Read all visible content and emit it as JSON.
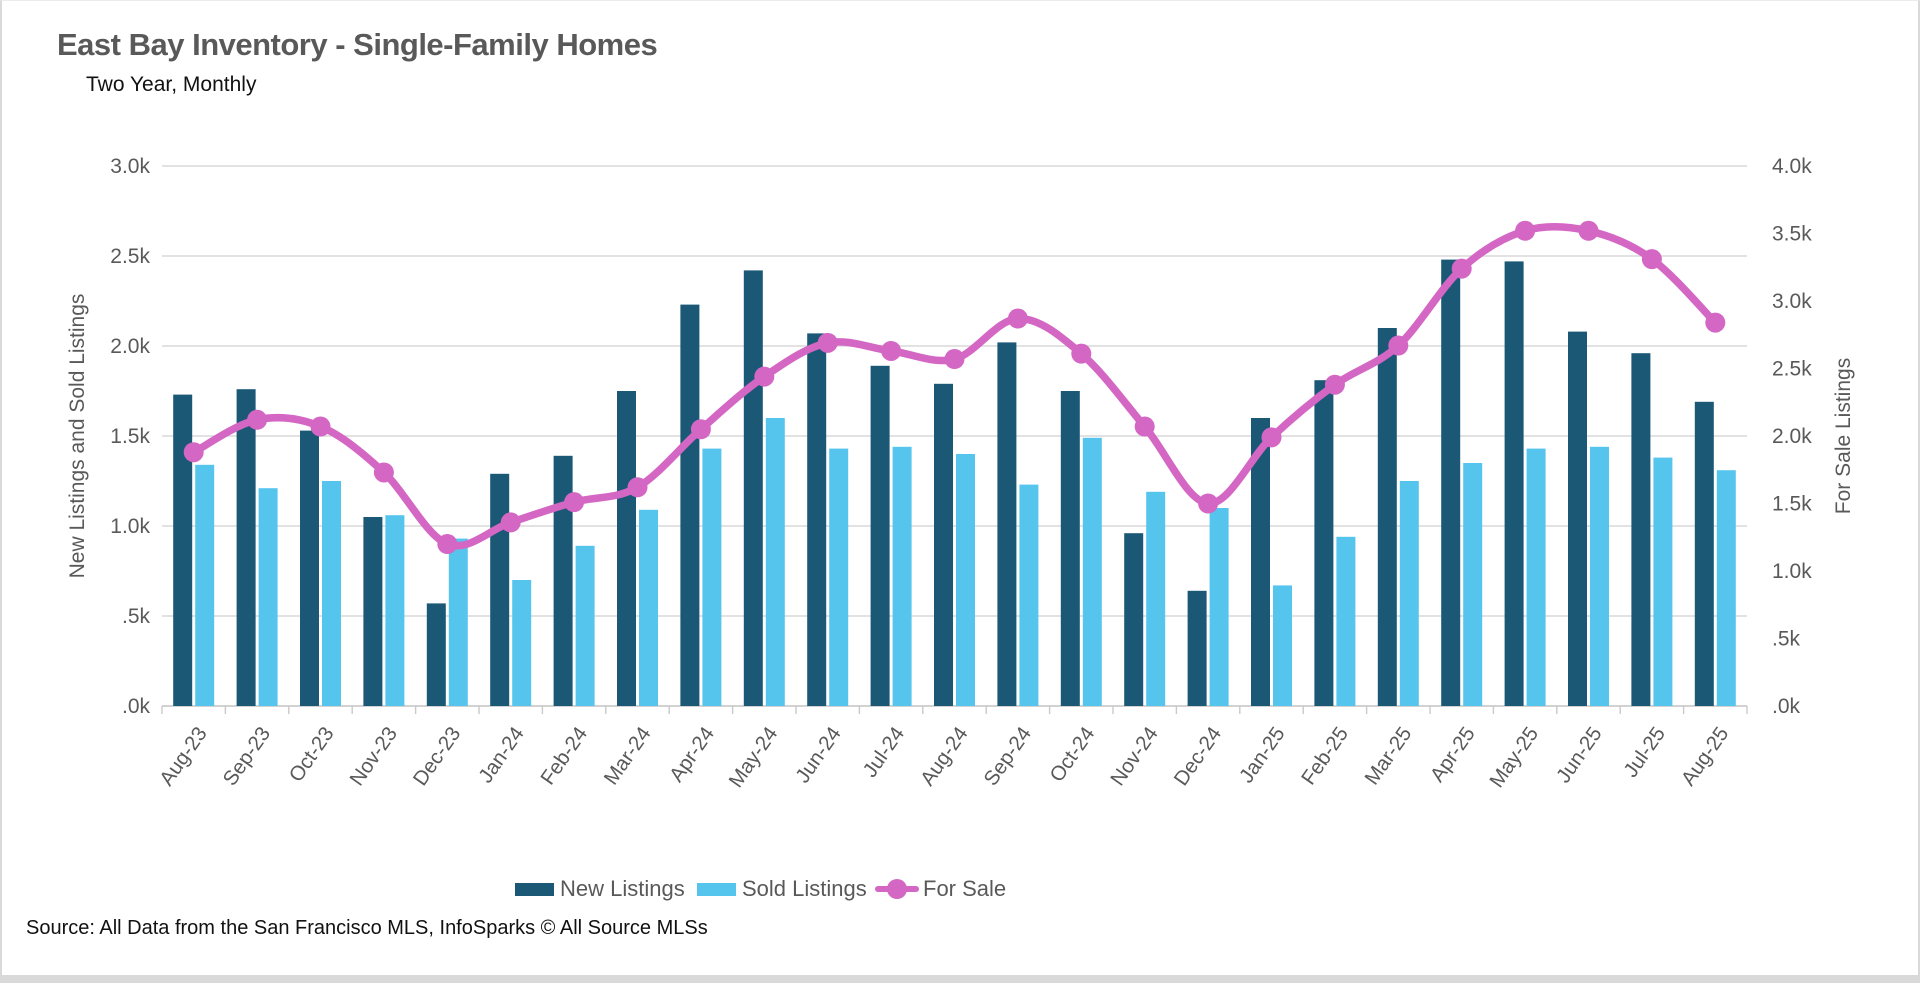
{
  "page": {
    "title": "East Bay Inventory - Single-Family Homes",
    "subtitle": "Two Year, Monthly",
    "source": "Source: All Data from the San Francisco MLS, InfoSparks © All Source MLSs"
  },
  "colors": {
    "new_listings": "#1a5876",
    "sold_listings": "#56c5ee",
    "for_sale": "#d466c4",
    "grid": "#d9d9d9",
    "axis_line": "#c9c9c9",
    "axis_text": "#595959",
    "title_text": "#595959"
  },
  "chart_data": {
    "type": "bar",
    "subtype": "grouped bars with overlay line",
    "title": "East Bay Inventory - Single-Family Homes",
    "subtitle": "Two Year, Monthly",
    "grid": true,
    "legend_position": "bottom",
    "categories": [
      "Aug-23",
      "Sep-23",
      "Oct-23",
      "Nov-23",
      "Dec-23",
      "Jan-24",
      "Feb-24",
      "Mar-24",
      "Apr-24",
      "May-24",
      "Jun-24",
      "Jul-24",
      "Aug-24",
      "Sep-24",
      "Oct-24",
      "Nov-24",
      "Dec-24",
      "Jan-25",
      "Feb-25",
      "Mar-25",
      "Apr-25",
      "May-25",
      "Jun-25",
      "Jul-25",
      "Aug-25"
    ],
    "series": [
      {
        "name": "New Listings",
        "type": "bar",
        "axis": "left",
        "color": "#1a5876",
        "values": [
          1730,
          1760,
          1530,
          1050,
          570,
          1290,
          1390,
          1750,
          2230,
          2420,
          2070,
          1890,
          1790,
          2020,
          1750,
          960,
          640,
          1600,
          1810,
          2100,
          2480,
          2470,
          2080,
          1960,
          1690
        ]
      },
      {
        "name": "Sold Listings",
        "type": "bar",
        "axis": "left",
        "color": "#56c5ee",
        "values": [
          1340,
          1210,
          1250,
          1060,
          930,
          700,
          890,
          1090,
          1430,
          1600,
          1430,
          1440,
          1400,
          1230,
          1490,
          1190,
          1100,
          670,
          940,
          1250,
          1350,
          1430,
          1440,
          1380,
          1310
        ]
      },
      {
        "name": "For Sale",
        "type": "line",
        "axis": "right",
        "color": "#d466c4",
        "values": [
          1880,
          2120,
          2070,
          1730,
          1200,
          1360,
          1510,
          1620,
          2050,
          2440,
          2690,
          2630,
          2570,
          2870,
          2610,
          2070,
          1500,
          1990,
          2380,
          2670,
          3240,
          3520,
          3520,
          3310,
          2840
        ]
      }
    ],
    "left_axis": {
      "label": "New Listings and Sold Listings",
      "min": 0,
      "max": 3000,
      "ticks": [
        "3.0k",
        "2.5k",
        "2.0k",
        "1.5k",
        "1.0k",
        ".5k",
        ".0k"
      ]
    },
    "right_axis": {
      "label": "For Sale Listings",
      "min": 0,
      "max": 4000,
      "ticks": [
        "4.0k",
        "3.5k",
        "3.0k",
        "2.5k",
        "2.0k",
        "1.5k",
        "1.0k",
        ".5k",
        ".0k"
      ]
    },
    "legend": [
      {
        "label": "New Listings"
      },
      {
        "label": "Sold Listings"
      },
      {
        "label": "For Sale"
      }
    ]
  }
}
